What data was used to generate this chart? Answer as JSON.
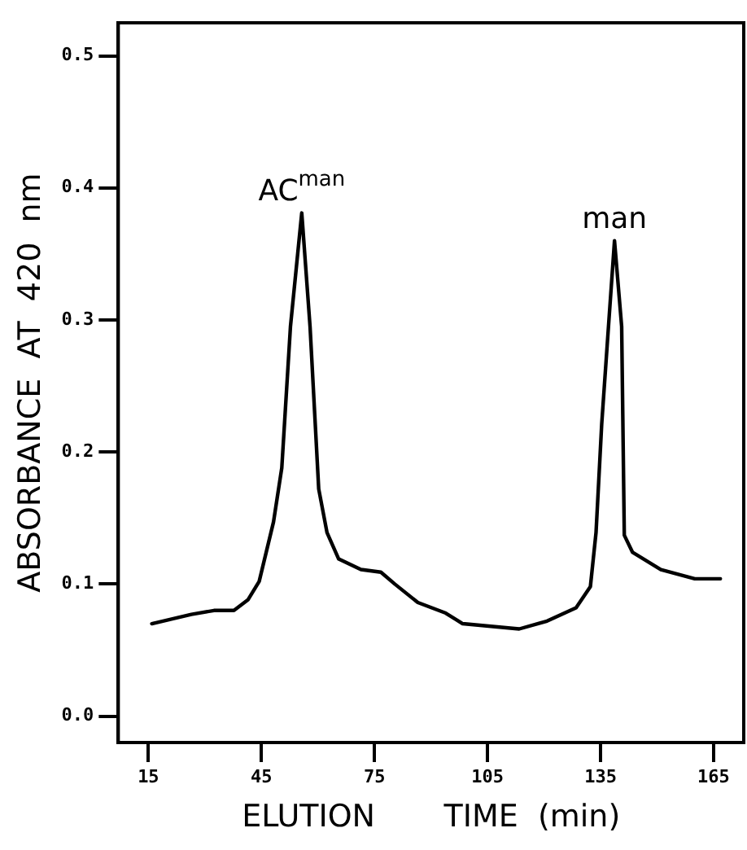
{
  "chart_data": {
    "type": "line",
    "xlabel": "ELUTION       TIME  (min)",
    "ylabel": "ABSORBANCE  AT  420  nm",
    "x": [
      15.9,
      26.4,
      32.4,
      37.7,
      41.4,
      44.4,
      48.2,
      50.4,
      52.7,
      55.7,
      57.9,
      60.2,
      62.4,
      65.5,
      71.4,
      76.7,
      80.4,
      86.5,
      93.9,
      98.4,
      105.9,
      113.4,
      120.8,
      128.5,
      132.3,
      133.8,
      135.3,
      137.1,
      138.7,
      140.6,
      141.3,
      143.5,
      151.0,
      160.0,
      166.8
    ],
    "series": [
      {
        "color": "#000000",
        "values": [
          0.07,
          0.077,
          0.08,
          0.08,
          0.088,
          0.102,
          0.147,
          0.188,
          0.295,
          0.381,
          0.295,
          0.172,
          0.139,
          0.119,
          0.111,
          0.109,
          0.1,
          0.086,
          0.078,
          0.07,
          0.068,
          0.066,
          0.072,
          0.082,
          0.098,
          0.139,
          0.221,
          0.295,
          0.36,
          0.295,
          0.137,
          0.124,
          0.111,
          0.104,
          0.104
        ]
      }
    ],
    "xlim": [
      7,
      173
    ],
    "xticks": [
      15,
      45,
      75,
      105,
      135,
      165
    ],
    "ylim": [
      -0.02,
      0.525
    ],
    "yticks": [
      {
        "value": 0,
        "label": "0.0"
      },
      {
        "value": 0.1,
        "label": "0.1"
      },
      {
        "value": 0.2,
        "label": "0.2"
      },
      {
        "value": 0.3,
        "label": "0.3"
      },
      {
        "value": 0.4,
        "label": "0.4"
      },
      {
        "value": 0.5,
        "label": "0.5"
      }
    ],
    "annotations": [
      {
        "text": "AC$^{man}$",
        "x": 55.7,
        "y": 0.381
      },
      {
        "text": "man",
        "x": 138.7,
        "y": 0.36
      }
    ],
    "grid": false,
    "legend": false,
    "marker": "none",
    "line_style": "solid"
  }
}
